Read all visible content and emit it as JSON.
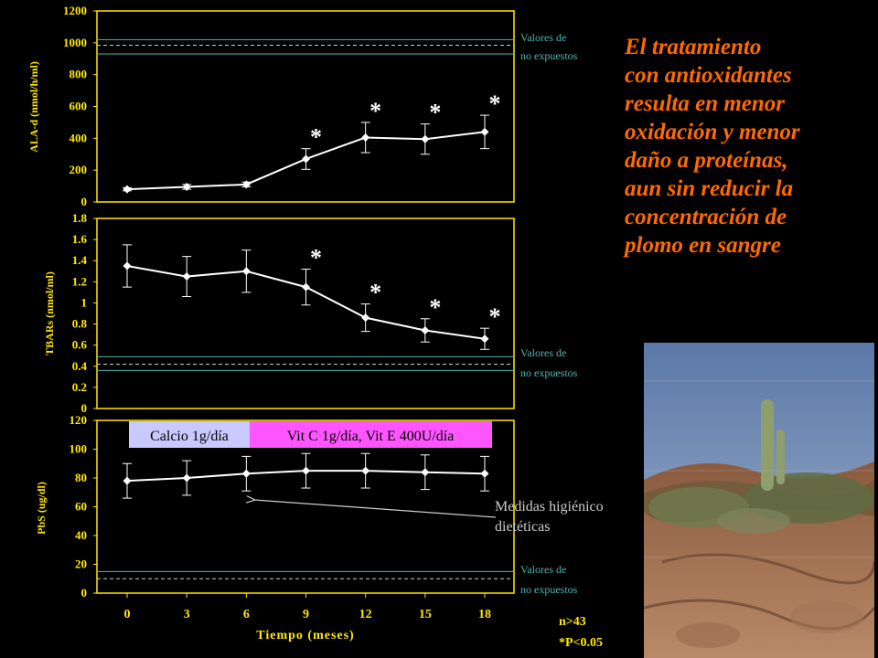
{
  "slide": {
    "headline": "El tratamiento\ncon antioxidantes\nresulta en menor\noxidación y menor\ndaño a proteínas,\naun sin reducir la\nconcentración de\nplomo en sangre",
    "ref_note_line1": "Valores de",
    "ref_note_line2": "no expuestos",
    "intervention_calcium": "Calcio  1g/día",
    "intervention_vitamins": "Vit C 1g/día, Vit E 400U/día",
    "arrow_note_line1": "Medidas higiénico",
    "arrow_note_line2": "dietéticas",
    "n_note": "n>43",
    "p_note": "*P<0.05",
    "colors": {
      "background": "#000000",
      "axis": "#ffe800",
      "series": "#ffffff",
      "reference": "#4fb7b0",
      "headline": "#ff6a00",
      "calcium_box": "#c9c9ff",
      "vitamin_box": "#ff55ff"
    }
  },
  "chart_data": [
    {
      "type": "line",
      "ylabel": "ALA-d (nmol/h/ml)",
      "x": [
        0,
        3,
        6,
        9,
        12,
        15,
        18
      ],
      "values": [
        80,
        95,
        110,
        270,
        405,
        395,
        440
      ],
      "error": [
        10,
        15,
        15,
        65,
        95,
        95,
        105
      ],
      "significant": [
        false,
        false,
        false,
        true,
        true,
        true,
        true
      ],
      "ylim": [
        0,
        1200
      ],
      "yticks": [
        0,
        200,
        400,
        600,
        800,
        1000,
        1200
      ],
      "reference": {
        "lines": [
          1020,
          930
        ],
        "dashed": 985
      }
    },
    {
      "type": "line",
      "ylabel": "TBARs (nmol/ml)",
      "x": [
        0,
        3,
        6,
        9,
        12,
        15,
        18
      ],
      "values": [
        1.35,
        1.25,
        1.3,
        1.15,
        0.86,
        0.74,
        0.66
      ],
      "error": [
        0.2,
        0.19,
        0.2,
        0.17,
        0.13,
        0.11,
        0.1
      ],
      "significant": [
        false,
        false,
        false,
        true,
        true,
        true,
        true
      ],
      "ylim": [
        0,
        1.8
      ],
      "yticks": [
        "0",
        "0.2",
        "0.4",
        "0.6",
        "0.8",
        "1",
        "1.2",
        "1.4",
        "1.6",
        "1.8"
      ],
      "reference": {
        "lines": [
          0.49,
          0.36
        ],
        "dashed": 0.42
      }
    },
    {
      "type": "line",
      "ylabel": "PbS (ug/dl)",
      "xlabel": "Tiempo (meses)",
      "x": [
        0,
        3,
        6,
        9,
        12,
        15,
        18
      ],
      "values": [
        78,
        80,
        83,
        85,
        85,
        84,
        83
      ],
      "error": [
        12,
        12,
        12,
        12,
        12,
        12,
        12
      ],
      "significant": [
        false,
        false,
        false,
        false,
        false,
        false,
        false
      ],
      "ylim": [
        0,
        120
      ],
      "yticks": [
        0,
        20,
        40,
        60,
        80,
        100,
        120
      ],
      "xticks": [
        0,
        3,
        6,
        9,
        12,
        15,
        18
      ],
      "reference": {
        "lines": [
          15
        ],
        "dashed": 10
      }
    }
  ]
}
